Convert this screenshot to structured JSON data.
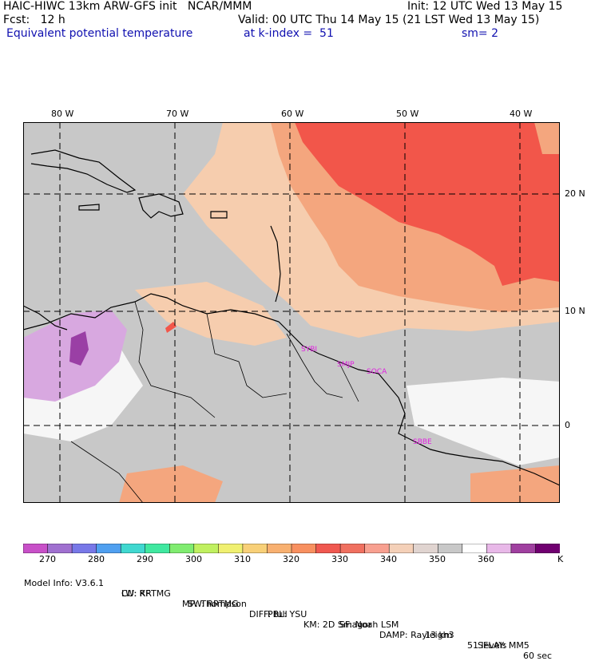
{
  "header": {
    "line1_left": "HAIC-HIWC 13km ARW-GFS init   NCAR/MMM",
    "line1_right": "Init: 12 UTC Wed 13 May 15",
    "line2_left": "Fcst:   12 h",
    "line2_right": "Valid: 00 UTC Thu 14 May 15 (21 LST Wed 13 May 15)",
    "field_name": "Equivalent potential temperature",
    "field_level": "at k-index =  51",
    "smoothing": "sm= 2"
  },
  "map": {
    "lon_labels": [
      "80 W",
      "70 W",
      "60 W",
      "50 W",
      "40 W"
    ],
    "lat_labels": [
      "20 N",
      "10 N",
      "0"
    ],
    "station_labels": [
      "SYBI",
      "SMJP",
      "SOCA",
      "SBBE"
    ],
    "field_colors": {
      "salmon": "#f4a67e",
      "red": "#f2564a",
      "peach": "#f6cdae",
      "gray": "#c8c8c8",
      "lightgray": "#dcdcdc",
      "white": "#f6f6f6",
      "lavender": "#d8a8e0",
      "purple": "#9a3fa5"
    },
    "station_color": "#e020e0"
  },
  "colorbar": {
    "colors": [
      "#c850c8",
      "#a070d0",
      "#7878e8",
      "#50a0f0",
      "#40d8d0",
      "#40e8a0",
      "#80ec70",
      "#c0f060",
      "#f0f070",
      "#f8d078",
      "#f8b070",
      "#f89060",
      "#f05850",
      "#f07060",
      "#f8a090",
      "#f4d0b8",
      "#e0d4d0",
      "#c8c8c8",
      "#ffffff",
      "#e8b8e8",
      "#a040a0",
      "#700070"
    ],
    "tick_labels": [
      "270",
      "280",
      "290",
      "300",
      "310",
      "320",
      "330",
      "340",
      "350",
      "360"
    ],
    "unit": "K"
  },
  "footer": {
    "line1": [
      "Model Info: V3.6.1",
      "CU: KF",
      "MP: Thompson",
      "PBL: YSU",
      "SF: Noah LSM",
      "13 km",
      "51 levels",
      "60 sec"
    ],
    "line2": [
      "LW: RRTMG",
      "SW: RRTMG",
      "DIFF: full",
      "KM: 2D Smagor",
      "DAMP: Rayleigh3",
      "SFLAY: MM5"
    ]
  }
}
